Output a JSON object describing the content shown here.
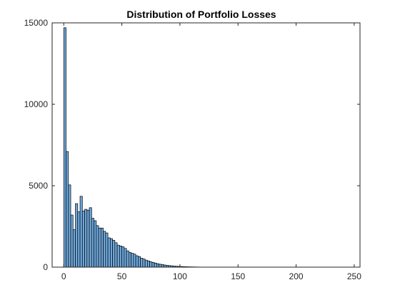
{
  "chart_data": {
    "type": "bar",
    "title": "Distribution of Portfolio Losses",
    "xlabel": "",
    "ylabel": "",
    "xlim": [
      -10,
      255
    ],
    "ylim": [
      0,
      15000
    ],
    "xticks": [
      0,
      50,
      100,
      150,
      200,
      250
    ],
    "yticks": [
      0,
      5000,
      10000,
      15000
    ],
    "grid": false,
    "bin_width": 2,
    "bin_start": 0,
    "bar_color": "#6fa8dc",
    "edge_color": "#000000",
    "values": [
      14700,
      7100,
      5050,
      3200,
      2300,
      3900,
      3400,
      4350,
      3450,
      3550,
      3500,
      3650,
      3000,
      2850,
      2550,
      2400,
      2400,
      2200,
      2100,
      1800,
      1750,
      1650,
      1500,
      1350,
      1300,
      1250,
      1150,
      1000,
      900,
      850,
      800,
      700,
      650,
      550,
      500,
      430,
      380,
      330,
      290,
      250,
      210,
      180,
      160,
      130,
      110,
      95,
      80,
      65,
      55,
      45,
      38,
      32,
      27,
      22,
      18,
      15,
      12,
      10,
      8,
      6,
      5,
      4,
      3,
      2,
      2,
      1,
      1,
      1
    ]
  }
}
